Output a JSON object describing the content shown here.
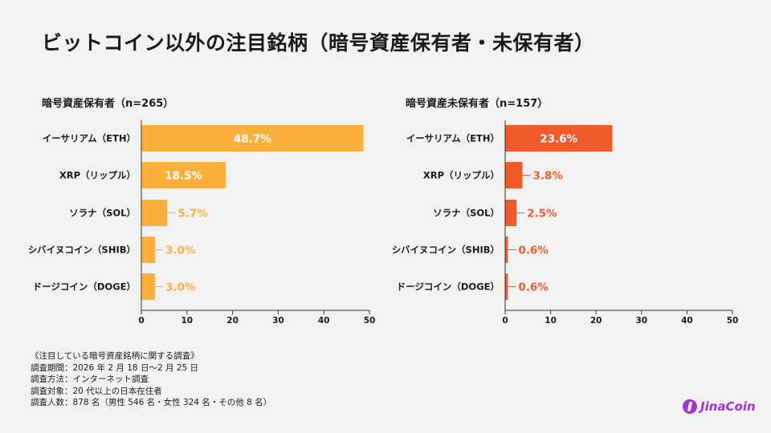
{
  "title": "ビットコイン以外の注目銘柄（暗号資産保有者・未保有者）",
  "chart_data": [
    {
      "type": "bar",
      "orientation": "horizontal",
      "title": "暗号資産保有者（n=265）",
      "categories": [
        "イーサリアム（ETH）",
        "XRP（リップル）",
        "ソラナ（SOL）",
        "シバイヌコイン（SHIB）",
        "ドージコイン（DOGE）"
      ],
      "values": [
        48.7,
        18.5,
        5.7,
        3.0,
        3.0
      ],
      "labels": [
        "48.7%",
        "18.5%",
        "5.7%",
        "3.0%",
        "3.0%"
      ],
      "xlim": [
        0,
        50
      ],
      "ticks": [
        "0",
        "10",
        "20",
        "30",
        "40",
        "50"
      ],
      "color": "#fbb03b",
      "grid": false
    },
    {
      "type": "bar",
      "orientation": "horizontal",
      "title": "暗号資産未保有者（n=157）",
      "categories": [
        "イーサリアム（ETH）",
        "XRP（リップル）",
        "ソラナ（SOL）",
        "シバイヌコイン（SHIB）",
        "ドージコイン（DOGE）"
      ],
      "values": [
        23.6,
        3.8,
        2.5,
        0.6,
        0.6
      ],
      "labels": [
        "23.6%",
        "3.8%",
        "2.5%",
        "0.6%",
        "0.6%"
      ],
      "xlim": [
        0,
        50
      ],
      "ticks": [
        "0",
        "10",
        "20",
        "30",
        "40",
        "50"
      ],
      "color": "#f15a2b",
      "grid": false
    }
  ],
  "notes": [
    "《注目している暗号資産銘柄に関する調査》",
    "調査期間：2026 年 2 月 18 日〜2 月 25 日",
    "調査方法：インターネット調査",
    "調査対象：20 代以上の日本在住者",
    "調査人数：878 名（男性 546 名・女性 324 名・その他 8 名）"
  ],
  "logo": "JinaCoin"
}
